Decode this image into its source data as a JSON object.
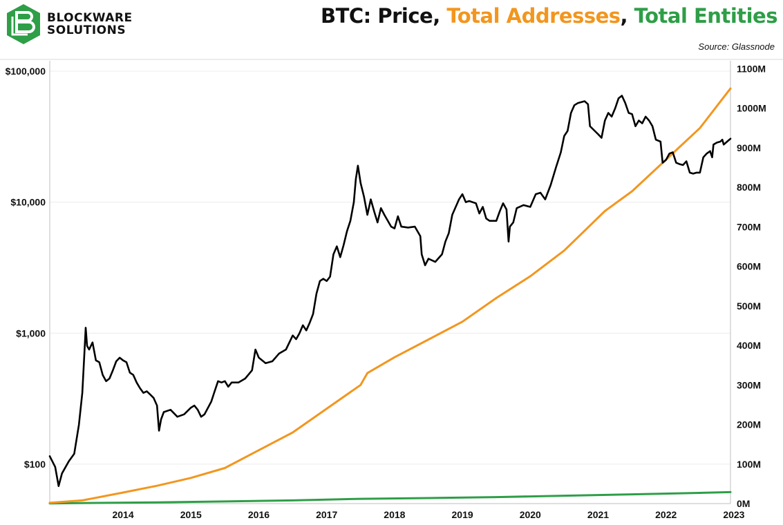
{
  "brand": {
    "line1": "BLOCKWARE",
    "line2": "SOLUTIONS",
    "logo_color": "#2E9E47"
  },
  "header": {
    "title_part1": "BTC: Price, ",
    "title_part2": "Total Addresses",
    "title_part3": ", ",
    "title_part4": "Total Entities",
    "source": "Source: Glassnode"
  },
  "chart_data": {
    "type": "line",
    "title": "BTC: Price, Total Addresses, Total Entities",
    "x_ticks": [
      "2014",
      "2015",
      "2016",
      "2017",
      "2018",
      "2019",
      "2020",
      "2021",
      "2022",
      "2023"
    ],
    "y_left": {
      "scale": "log",
      "range": [
        50,
        120000
      ],
      "ticks": [
        100,
        1000,
        10000,
        100000
      ],
      "tick_labels": [
        "$100",
        "$1,000",
        "$10,000",
        "$100,000"
      ]
    },
    "y_right": {
      "range": [
        0,
        1120
      ],
      "unit": "M",
      "ticks": [
        0,
        100,
        200,
        300,
        400,
        500,
        600,
        700,
        800,
        900,
        1000,
        1100
      ],
      "tick_labels": [
        "0M",
        "100M",
        "200M",
        "300M",
        "400M",
        "500M",
        "600M",
        "700M",
        "800M",
        "900M",
        "1000M",
        "1100M"
      ]
    },
    "x_range": [
      2013.42,
      2023.45
    ],
    "series": [
      {
        "name": "Price",
        "axis": "left",
        "color": "#000000",
        "points": [
          [
            2013.42,
            115
          ],
          [
            2013.5,
            95
          ],
          [
            2013.55,
            68
          ],
          [
            2013.6,
            85
          ],
          [
            2013.7,
            105
          ],
          [
            2013.78,
            120
          ],
          [
            2013.85,
            200
          ],
          [
            2013.9,
            350
          ],
          [
            2013.93,
            700
          ],
          [
            2013.95,
            1100
          ],
          [
            2013.97,
            800
          ],
          [
            2014.0,
            750
          ],
          [
            2014.05,
            850
          ],
          [
            2014.1,
            620
          ],
          [
            2014.15,
            600
          ],
          [
            2014.2,
            480
          ],
          [
            2014.25,
            430
          ],
          [
            2014.3,
            450
          ],
          [
            2014.35,
            520
          ],
          [
            2014.4,
            610
          ],
          [
            2014.45,
            650
          ],
          [
            2014.5,
            620
          ],
          [
            2014.55,
            600
          ],
          [
            2014.6,
            500
          ],
          [
            2014.65,
            480
          ],
          [
            2014.7,
            420
          ],
          [
            2014.75,
            380
          ],
          [
            2014.8,
            350
          ],
          [
            2014.85,
            360
          ],
          [
            2014.9,
            340
          ],
          [
            2014.95,
            320
          ],
          [
            2015.0,
            280
          ],
          [
            2015.03,
            180
          ],
          [
            2015.06,
            220
          ],
          [
            2015.1,
            250
          ],
          [
            2015.2,
            260
          ],
          [
            2015.3,
            230
          ],
          [
            2015.4,
            240
          ],
          [
            2015.5,
            270
          ],
          [
            2015.55,
            280
          ],
          [
            2015.6,
            260
          ],
          [
            2015.65,
            230
          ],
          [
            2015.7,
            240
          ],
          [
            2015.8,
            300
          ],
          [
            2015.85,
            360
          ],
          [
            2015.9,
            430
          ],
          [
            2015.95,
            420
          ],
          [
            2016.0,
            430
          ],
          [
            2016.05,
            390
          ],
          [
            2016.1,
            420
          ],
          [
            2016.2,
            420
          ],
          [
            2016.3,
            450
          ],
          [
            2016.4,
            520
          ],
          [
            2016.45,
            750
          ],
          [
            2016.5,
            650
          ],
          [
            2016.6,
            590
          ],
          [
            2016.7,
            610
          ],
          [
            2016.8,
            700
          ],
          [
            2016.9,
            750
          ],
          [
            2017.0,
            960
          ],
          [
            2017.05,
            900
          ],
          [
            2017.1,
            1000
          ],
          [
            2017.15,
            1150
          ],
          [
            2017.2,
            1050
          ],
          [
            2017.25,
            1200
          ],
          [
            2017.3,
            1400
          ],
          [
            2017.35,
            2000
          ],
          [
            2017.4,
            2500
          ],
          [
            2017.45,
            2600
          ],
          [
            2017.5,
            2500
          ],
          [
            2017.55,
            2700
          ],
          [
            2017.6,
            4000
          ],
          [
            2017.65,
            4600
          ],
          [
            2017.7,
            3800
          ],
          [
            2017.75,
            4700
          ],
          [
            2017.8,
            6000
          ],
          [
            2017.85,
            7200
          ],
          [
            2017.9,
            10000
          ],
          [
            2017.93,
            15000
          ],
          [
            2017.96,
            19000
          ],
          [
            2018.0,
            14000
          ],
          [
            2018.05,
            11000
          ],
          [
            2018.1,
            8000
          ],
          [
            2018.15,
            10500
          ],
          [
            2018.2,
            8500
          ],
          [
            2018.25,
            7000
          ],
          [
            2018.3,
            9000
          ],
          [
            2018.35,
            8000
          ],
          [
            2018.45,
            6500
          ],
          [
            2018.5,
            6300
          ],
          [
            2018.55,
            7800
          ],
          [
            2018.6,
            6500
          ],
          [
            2018.7,
            6400
          ],
          [
            2018.8,
            6500
          ],
          [
            2018.88,
            5500
          ],
          [
            2018.9,
            4000
          ],
          [
            2018.95,
            3300
          ],
          [
            2019.0,
            3700
          ],
          [
            2019.1,
            3500
          ],
          [
            2019.2,
            4000
          ],
          [
            2019.25,
            5000
          ],
          [
            2019.3,
            5800
          ],
          [
            2019.35,
            8000
          ],
          [
            2019.45,
            10500
          ],
          [
            2019.5,
            11500
          ],
          [
            2019.55,
            10000
          ],
          [
            2019.6,
            10200
          ],
          [
            2019.7,
            9800
          ],
          [
            2019.75,
            8200
          ],
          [
            2019.8,
            9200
          ],
          [
            2019.85,
            7500
          ],
          [
            2019.9,
            7200
          ],
          [
            2019.95,
            7200
          ],
          [
            2020.0,
            7200
          ],
          [
            2020.05,
            8500
          ],
          [
            2020.1,
            9800
          ],
          [
            2020.15,
            8800
          ],
          [
            2020.18,
            5000
          ],
          [
            2020.2,
            6500
          ],
          [
            2020.25,
            7000
          ],
          [
            2020.3,
            9000
          ],
          [
            2020.4,
            9500
          ],
          [
            2020.5,
            9200
          ],
          [
            2020.58,
            11500
          ],
          [
            2020.65,
            11800
          ],
          [
            2020.72,
            10500
          ],
          [
            2020.8,
            13500
          ],
          [
            2020.88,
            18500
          ],
          [
            2020.95,
            24000
          ],
          [
            2021.0,
            32000
          ],
          [
            2021.05,
            35000
          ],
          [
            2021.1,
            48000
          ],
          [
            2021.15,
            55000
          ],
          [
            2021.2,
            57000
          ],
          [
            2021.3,
            59000
          ],
          [
            2021.35,
            56000
          ],
          [
            2021.38,
            38000
          ],
          [
            2021.45,
            35000
          ],
          [
            2021.5,
            33000
          ],
          [
            2021.55,
            31000
          ],
          [
            2021.6,
            42000
          ],
          [
            2021.65,
            48000
          ],
          [
            2021.7,
            45000
          ],
          [
            2021.75,
            52000
          ],
          [
            2021.8,
            62000
          ],
          [
            2021.85,
            65000
          ],
          [
            2021.9,
            57000
          ],
          [
            2021.95,
            48000
          ],
          [
            2022.0,
            47000
          ],
          [
            2022.05,
            38000
          ],
          [
            2022.1,
            42000
          ],
          [
            2022.15,
            40000
          ],
          [
            2022.2,
            45000
          ],
          [
            2022.25,
            42000
          ],
          [
            2022.3,
            38000
          ],
          [
            2022.35,
            30000
          ],
          [
            2022.42,
            29000
          ],
          [
            2022.45,
            20000
          ],
          [
            2022.5,
            21000
          ],
          [
            2022.55,
            23500
          ],
          [
            2022.6,
            24000
          ],
          [
            2022.65,
            20000
          ],
          [
            2022.7,
            19500
          ],
          [
            2022.75,
            19200
          ],
          [
            2022.8,
            20500
          ],
          [
            2022.85,
            16800
          ],
          [
            2022.9,
            16500
          ],
          [
            2022.95,
            16800
          ],
          [
            2023.0,
            16800
          ],
          [
            2023.05,
            22000
          ],
          [
            2023.1,
            23500
          ],
          [
            2023.15,
            24500
          ],
          [
            2023.18,
            22000
          ],
          [
            2023.2,
            27500
          ],
          [
            2023.25,
            28500
          ],
          [
            2023.3,
            29000
          ],
          [
            2023.33,
            30000
          ],
          [
            2023.35,
            27500
          ],
          [
            2023.4,
            29000
          ],
          [
            2023.45,
            30500
          ]
        ]
      },
      {
        "name": "Total Addresses",
        "axis": "right",
        "color": "#F2961E",
        "points": [
          [
            2013.42,
            2
          ],
          [
            2013.9,
            8
          ],
          [
            2014.5,
            28
          ],
          [
            2015.0,
            45
          ],
          [
            2015.5,
            65
          ],
          [
            2016.0,
            90
          ],
          [
            2016.5,
            135
          ],
          [
            2017.0,
            180
          ],
          [
            2017.5,
            240
          ],
          [
            2018.0,
            300
          ],
          [
            2018.1,
            330
          ],
          [
            2018.5,
            370
          ],
          [
            2019.0,
            415
          ],
          [
            2019.5,
            460
          ],
          [
            2020.0,
            520
          ],
          [
            2020.5,
            575
          ],
          [
            2021.0,
            640
          ],
          [
            2021.3,
            690
          ],
          [
            2021.6,
            740
          ],
          [
            2022.0,
            790
          ],
          [
            2022.5,
            870
          ],
          [
            2023.0,
            950
          ],
          [
            2023.45,
            1050
          ]
        ]
      },
      {
        "name": "Total Entities",
        "axis": "right",
        "color": "#2E9E47",
        "points": [
          [
            2013.42,
            0.5
          ],
          [
            2014.0,
            1.5
          ],
          [
            2015.0,
            3
          ],
          [
            2016.0,
            5.5
          ],
          [
            2017.0,
            8
          ],
          [
            2018.0,
            12
          ],
          [
            2019.0,
            14
          ],
          [
            2020.0,
            16.5
          ],
          [
            2021.0,
            20
          ],
          [
            2022.0,
            23.5
          ],
          [
            2023.0,
            27
          ],
          [
            2023.45,
            29
          ]
        ]
      }
    ]
  }
}
